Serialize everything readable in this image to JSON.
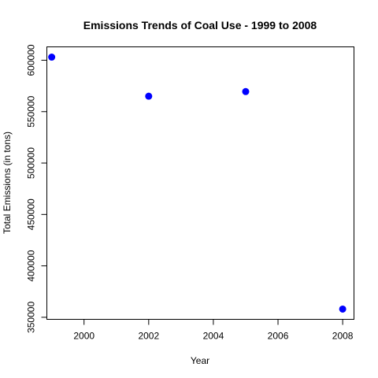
{
  "chart_data": {
    "type": "scatter",
    "title": "Emissions Trends of Coal Use - 1999 to 2008",
    "xlabel": "Year",
    "ylabel": "Total Emissions (in tons)",
    "x": [
      1999,
      2002,
      2005,
      2008
    ],
    "y": [
      603000,
      565000,
      569500,
      358000
    ],
    "xlim": [
      1998.85,
      2008.35
    ],
    "ylim": [
      348000,
      613000
    ],
    "x_ticks": [
      2000,
      2002,
      2004,
      2006,
      2008
    ],
    "y_ticks": [
      350000,
      400000,
      450000,
      500000,
      550000,
      600000
    ],
    "x_tick_labels": [
      "2000",
      "2002",
      "2004",
      "2006",
      "2008"
    ],
    "y_tick_labels": [
      "350000",
      "400000",
      "450000",
      "500000",
      "550000",
      "600000"
    ],
    "point_color": "#0000ff",
    "grid": false,
    "legend": "none"
  }
}
